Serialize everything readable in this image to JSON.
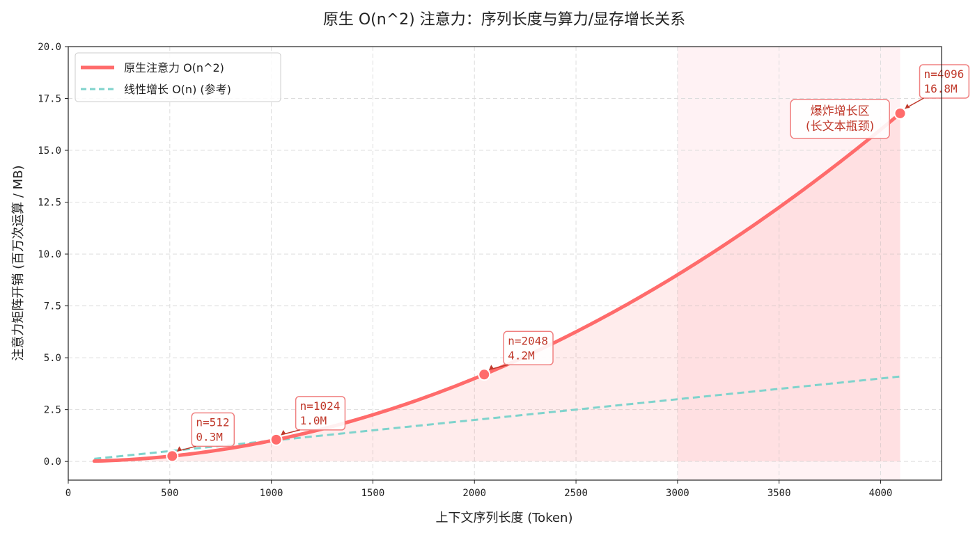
{
  "chart_data": {
    "type": "line",
    "title": "原生 O(n^2) 注意力：序列长度与算力/显存增长关系",
    "xlabel": "上下文序列长度 (Token)",
    "ylabel": "注意力矩阵开销 (百万次运算 / MB)",
    "xlim": [
      0,
      4300
    ],
    "ylim": [
      -0.9,
      20.0
    ],
    "xticks": [
      0,
      500,
      1000,
      1500,
      2000,
      2500,
      3000,
      3500,
      4000
    ],
    "xtick_labels": [
      "0",
      "500",
      "1000",
      "1500",
      "2000",
      "2500",
      "3000",
      "3500",
      "4000"
    ],
    "yticks": [
      0,
      2.5,
      5,
      7.5,
      10,
      12.5,
      15,
      17.5,
      20
    ],
    "ytick_labels": [
      "0.0",
      "2.5",
      "5.0",
      "7.5",
      "10.0",
      "12.5",
      "15.0",
      "17.5",
      "20.0"
    ],
    "grid": true,
    "legend_position": "top-left",
    "series": [
      {
        "name": "原生注意力 O(n^2)",
        "formula": "n^2 / 1e6",
        "x_range": [
          128,
          4096
        ],
        "color": "#ff6b6b",
        "style": "solid",
        "fill": true
      },
      {
        "name": "线性增长 O(n) (参考)",
        "formula": "n / 1000",
        "x_range": [
          128,
          4096
        ],
        "color": "#7fd3cc",
        "style": "dashed"
      }
    ],
    "highlight_region": {
      "x": [
        3000,
        4096
      ],
      "color": "#ffcdd2"
    },
    "annotations": [
      {
        "x": 512,
        "y": 0.26,
        "lines": [
          "n=512",
          "0.3M"
        ]
      },
      {
        "x": 1024,
        "y": 1.05,
        "lines": [
          "n=1024",
          "1.0M"
        ]
      },
      {
        "x": 2048,
        "y": 4.19,
        "lines": [
          "n=2048",
          "4.2M"
        ]
      },
      {
        "x": 4096,
        "y": 16.78,
        "lines": [
          "n=4096",
          "16.8M"
        ]
      }
    ],
    "zone_label": [
      "爆炸增长区",
      "(长文本瓶颈)"
    ]
  }
}
